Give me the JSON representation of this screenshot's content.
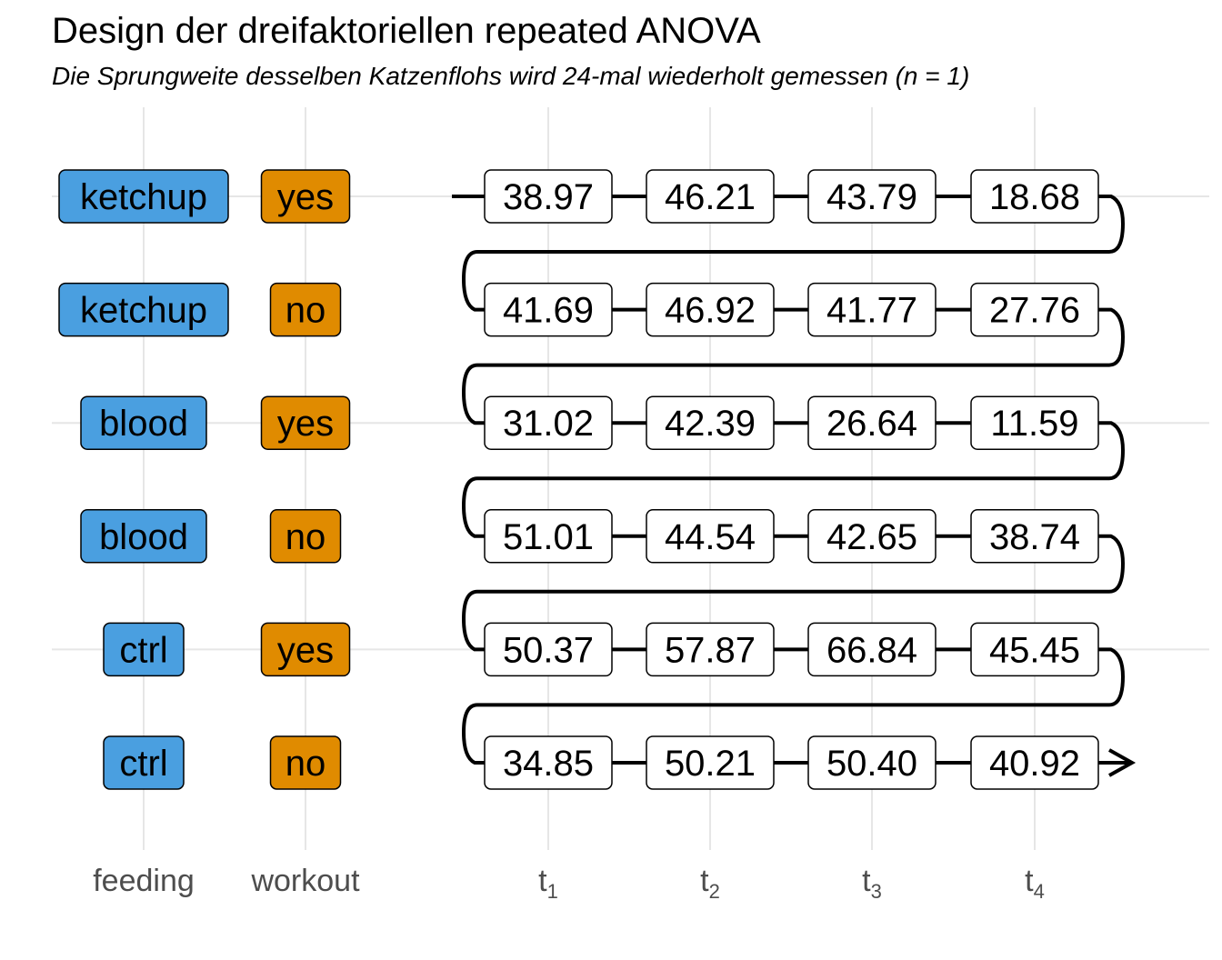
{
  "title": "Design der dreifaktoriellen repeated ANOVA",
  "subtitle": "Die Sprungweite desselben Katzenflohs wird 24-mal wiederholt gemessen (n = 1)",
  "colors": {
    "feeding": "#4a9fe0",
    "workout": "#e08b00",
    "grid": "#e6e6e6",
    "axis_text": "#4d4d4d"
  },
  "axis": {
    "feeding_label": "feeding",
    "workout_label": "workout",
    "time_labels": [
      {
        "base": "t",
        "sub": "1"
      },
      {
        "base": "t",
        "sub": "2"
      },
      {
        "base": "t",
        "sub": "3"
      },
      {
        "base": "t",
        "sub": "4"
      }
    ]
  },
  "rows": [
    {
      "feeding": "ketchup",
      "workout": "yes",
      "values": [
        "38.97",
        "46.21",
        "43.79",
        "18.68"
      ]
    },
    {
      "feeding": "ketchup",
      "workout": "no",
      "values": [
        "41.69",
        "46.92",
        "41.77",
        "27.76"
      ]
    },
    {
      "feeding": "blood",
      "workout": "yes",
      "values": [
        "31.02",
        "42.39",
        "26.64",
        "11.59"
      ]
    },
    {
      "feeding": "blood",
      "workout": "no",
      "values": [
        "51.01",
        "44.54",
        "42.65",
        "38.74"
      ]
    },
    {
      "feeding": "ctrl",
      "workout": "yes",
      "values": [
        "50.37",
        "57.87",
        "66.84",
        "45.45"
      ]
    },
    {
      "feeding": "ctrl",
      "workout": "no",
      "values": [
        "34.85",
        "50.21",
        "50.40",
        "40.92"
      ]
    }
  ]
}
